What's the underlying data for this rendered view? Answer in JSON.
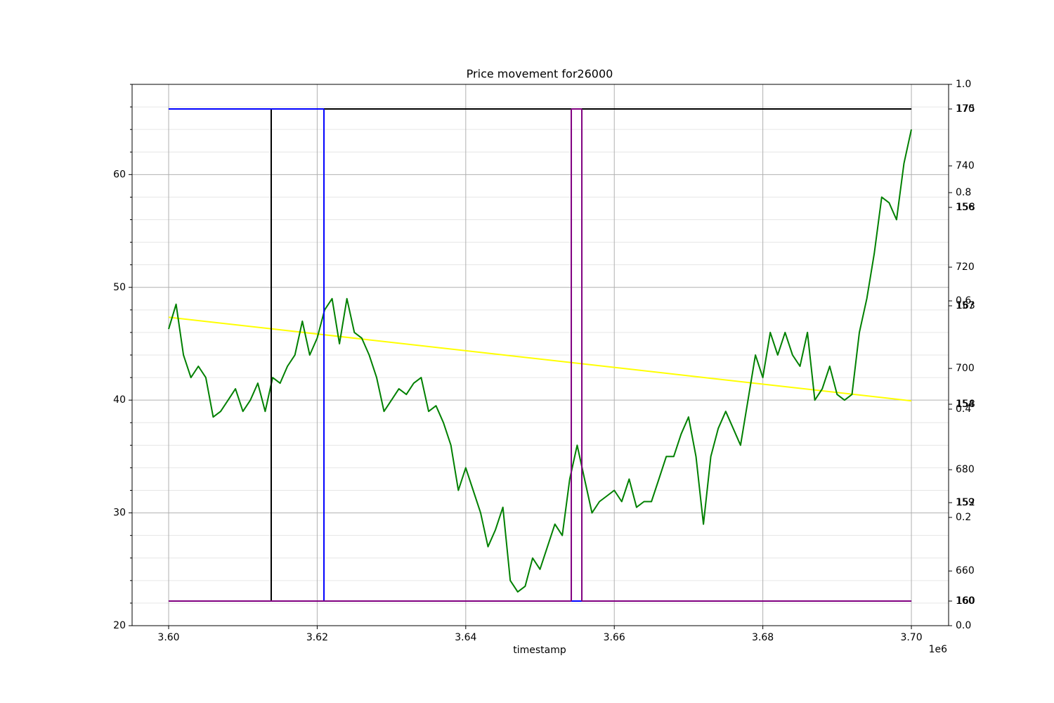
{
  "chart_data": {
    "type": "line",
    "title": "Price movement for26000",
    "xlabel": "timestamp",
    "x_offset_label": "1e6",
    "grid": true,
    "xlim": [
      3595080,
      3705010
    ],
    "xticks": [
      {
        "value": 3600000,
        "label": "3.60"
      },
      {
        "value": 3620000,
        "label": "3.62"
      },
      {
        "value": 3640000,
        "label": "3.64"
      },
      {
        "value": 3660000,
        "label": "3.66"
      },
      {
        "value": 3680000,
        "label": "3.68"
      },
      {
        "value": 3700000,
        "label": "3.70"
      }
    ],
    "ylim": [
      20,
      68
    ],
    "yticks": [
      20,
      30,
      40,
      50,
      60
    ],
    "yminorticks": [
      22,
      24,
      26,
      28,
      32,
      34,
      36,
      38,
      42,
      44,
      46,
      48,
      52,
      54,
      56,
      58,
      62,
      64,
      66,
      68
    ],
    "y2lim": [
      649.2,
      756.1
    ],
    "y2ticks": [
      660,
      680,
      700,
      720,
      740
    ],
    "y3lim": [
      0,
      1
    ],
    "y3ticks": [
      {
        "value": 0,
        "label": "0.0"
      },
      0.2,
      0.4,
      0.6,
      0.8,
      {
        "value": 1,
        "label": "1.0"
      }
    ],
    "y4lim": [
      -0.05,
      1.05
    ],
    "y4ticks": [
      {
        "value": 0,
        "label": "160"
      },
      {
        "value": 0.2,
        "label": "159"
      },
      {
        "value": 0.4,
        "label": "154"
      },
      {
        "value": 0.6,
        "label": "157"
      },
      {
        "value": 0.8,
        "label": "156"
      },
      {
        "value": 1,
        "label": "170"
      }
    ],
    "y5lim": [
      -0.05,
      1.05
    ],
    "y5ticks": [
      {
        "value": 0,
        "label": "160"
      },
      {
        "value": 0.2,
        "label": "152"
      },
      {
        "value": 0.4,
        "label": "158"
      },
      {
        "value": 0.6,
        "label": "163"
      },
      {
        "value": 0.8,
        "label": "158"
      },
      {
        "value": 1,
        "label": "175"
      }
    ],
    "x": [
      3600000,
      3601000,
      3602000,
      3603000,
      3604000,
      3605000,
      3606000,
      3607000,
      3608000,
      3609000,
      3610000,
      3611000,
      3612000,
      3613000,
      3614000,
      3615000,
      3616000,
      3617000,
      3618000,
      3619000,
      3620000,
      3621000,
      3622000,
      3623000,
      3624000,
      3625000,
      3626000,
      3627000,
      3628000,
      3629000,
      3630000,
      3631000,
      3632000,
      3633000,
      3634000,
      3635000,
      3636000,
      3637000,
      3638000,
      3639000,
      3640000,
      3641000,
      3642000,
      3643000,
      3644000,
      3645000,
      3646000,
      3647000,
      3648000,
      3649000,
      3650000,
      3651000,
      3652000,
      3653000,
      3654000,
      3655000,
      3656000,
      3657000,
      3658000,
      3659000,
      3660000,
      3661000,
      3662000,
      3663000,
      3664000,
      3665000,
      3666000,
      3667000,
      3668000,
      3669000,
      3670000,
      3671000,
      3672000,
      3673000,
      3674000,
      3675000,
      3676000,
      3677000,
      3678000,
      3679000,
      3680000,
      3681000,
      3682000,
      3683000,
      3684000,
      3685000,
      3686000,
      3687000,
      3688000,
      3689000,
      3690000,
      3691000,
      3692000,
      3693000,
      3694000,
      3695000,
      3696000,
      3697000,
      3698000,
      3699000,
      3700000
    ],
    "series": [
      {
        "color": "#ffff00",
        "axis": "y2",
        "x": [
          3600000,
          3700000
        ],
        "values": [
          710.1,
          693.6
        ]
      },
      {
        "color": "#008000",
        "axis": "y",
        "values": [
          46.3,
          48.5,
          44,
          42,
          43,
          42,
          38.5,
          39,
          40,
          41,
          39,
          40,
          41.5,
          39,
          42,
          41.5,
          43,
          44,
          47,
          44,
          45.5,
          48,
          49,
          45,
          49,
          46,
          45.5,
          44,
          42,
          39,
          40,
          41,
          40.5,
          41.5,
          42,
          39,
          39.5,
          38,
          36,
          32,
          34,
          32,
          30,
          27,
          28.5,
          30.5,
          24,
          23,
          23.5,
          26,
          25,
          27,
          29,
          28,
          33,
          36,
          33,
          30,
          31,
          31.5,
          32,
          31,
          33,
          30.5,
          31,
          31,
          33,
          35,
          35,
          37,
          38.5,
          35,
          29,
          35,
          37.5,
          39,
          37.5,
          36,
          40,
          44,
          42,
          46,
          44,
          46,
          44,
          43,
          46,
          40,
          41,
          43,
          40.5,
          40,
          40.5,
          46,
          49,
          53,
          58,
          57.5,
          56,
          61,
          64
        ]
      },
      {
        "color": "#000000",
        "axis": "y4",
        "step": true,
        "x": [
          3600000,
          3613810,
          3700000
        ],
        "values": [
          0,
          1,
          1
        ]
      },
      {
        "color": "#0000ff",
        "axis": "y5",
        "step": true,
        "x": [
          3600000,
          3620910,
          3700000
        ],
        "values": [
          1,
          0,
          0
        ]
      },
      {
        "color": "#800080",
        "axis": "y4",
        "step": true,
        "x": [
          3600000,
          3654210,
          3655630,
          3700000
        ],
        "values": [
          0,
          1,
          0,
          0
        ]
      }
    ]
  }
}
